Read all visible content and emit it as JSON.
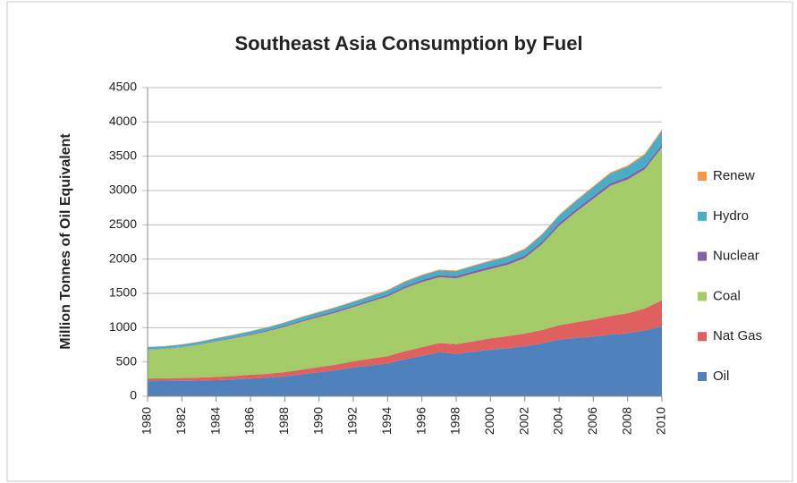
{
  "chart_data": {
    "type": "stacked_area",
    "title": "Southeast Asia Consumption by Fuel",
    "ylabel": "Million Tonnes of Oil Equivalent",
    "x": [
      1980,
      1981,
      1982,
      1983,
      1984,
      1985,
      1986,
      1987,
      1988,
      1989,
      1990,
      1991,
      1992,
      1993,
      1994,
      1995,
      1996,
      1997,
      1998,
      1999,
      2000,
      2001,
      2002,
      2003,
      2004,
      2005,
      2006,
      2007,
      2008,
      2009,
      2010
    ],
    "xlim": [
      1980,
      2010
    ],
    "xticks": [
      1980,
      1982,
      1984,
      1986,
      1988,
      1990,
      1992,
      1994,
      1996,
      1998,
      2000,
      2002,
      2004,
      2006,
      2008,
      2010
    ],
    "ylim": [
      0,
      4500
    ],
    "yticks": [
      0,
      500,
      1000,
      1500,
      2000,
      2500,
      3000,
      3500,
      4000,
      4500
    ],
    "grid": true,
    "legend": "right",
    "series": [
      {
        "name": "Oil",
        "color": "#4f81bd",
        "values": [
          220,
          222,
          224,
          228,
          235,
          245,
          258,
          270,
          290,
          320,
          350,
          380,
          420,
          450,
          480,
          540,
          590,
          640,
          620,
          650,
          680,
          700,
          730,
          770,
          830,
          850,
          870,
          900,
          920,
          960,
          1020
        ]
      },
      {
        "name": "Nat Gas",
        "color": "#e06060",
        "values": [
          40,
          40,
          42,
          44,
          46,
          50,
          55,
          58,
          62,
          68,
          75,
          82,
          90,
          98,
          105,
          115,
          125,
          135,
          140,
          150,
          165,
          175,
          185,
          195,
          205,
          230,
          250,
          270,
          290,
          320,
          380
        ]
      },
      {
        "name": "Coal",
        "color": "#a3cc68",
        "values": [
          420,
          430,
          450,
          480,
          520,
          550,
          580,
          620,
          660,
          700,
          730,
          760,
          790,
          830,
          870,
          920,
          950,
          960,
          960,
          990,
          1010,
          1040,
          1100,
          1250,
          1450,
          1610,
          1760,
          1900,
          1950,
          2030,
          2230
        ]
      },
      {
        "name": "Nuclear",
        "color": "#8064a2",
        "values": [
          5,
          5,
          5,
          6,
          8,
          10,
          12,
          14,
          16,
          18,
          20,
          22,
          22,
          24,
          26,
          28,
          30,
          32,
          32,
          34,
          36,
          36,
          38,
          38,
          40,
          40,
          40,
          40,
          40,
          40,
          40
        ]
      },
      {
        "name": "Hydro",
        "color": "#4bacc6",
        "values": [
          30,
          30,
          32,
          34,
          36,
          38,
          40,
          42,
          45,
          48,
          50,
          52,
          55,
          58,
          60,
          65,
          68,
          70,
          72,
          75,
          80,
          85,
          90,
          100,
          110,
          120,
          130,
          140,
          150,
          170,
          200
        ]
      },
      {
        "name": "Renew",
        "color": "#f79646",
        "values": [
          5,
          5,
          5,
          5,
          5,
          5,
          6,
          6,
          6,
          7,
          7,
          8,
          8,
          8,
          9,
          9,
          10,
          10,
          10,
          10,
          10,
          11,
          11,
          12,
          12,
          13,
          14,
          15,
          16,
          18,
          20
        ]
      }
    ]
  }
}
